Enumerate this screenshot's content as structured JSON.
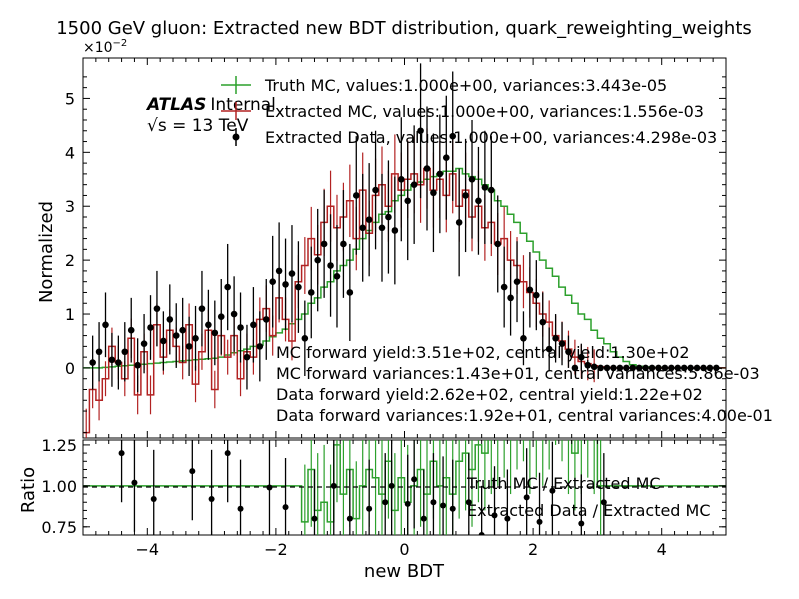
{
  "chart_data": {
    "type": "line",
    "title": "1500 GeV gluon: Extracted new BDT distribution, quark_reweighting_weights",
    "xlabel": "new BDT",
    "ylabel": "Normalized",
    "ratio_ylabel": "Ratio",
    "scale_label": "×10",
    "scale_exp": "−2",
    "xlim": [
      -5,
      5
    ],
    "ylim": [
      -1.3,
      5.75
    ],
    "ratio_ylim": [
      0.7,
      1.28
    ],
    "x_ticks": [
      -4,
      -2,
      0,
      2,
      4
    ],
    "x_tick_labels": [
      "−4",
      "−2",
      "0",
      "2",
      "4"
    ],
    "y_ticks": [
      0,
      1,
      2,
      3,
      4,
      5
    ],
    "y_tick_labels": [
      "0",
      "1",
      "2",
      "3",
      "4",
      "5"
    ],
    "ratio_ticks": [
      0.75,
      1.0,
      1.25
    ],
    "ratio_tick_labels": [
      "0.75",
      "1.00",
      "1.25"
    ],
    "atlas_label": "ATLAS",
    "atlas_sub": "Internal",
    "energy_label": "√s =  13 TeV",
    "legend": [
      "Truth MC, values:1.000e+00, variances:3.443e-05",
      "Extracted MC, values:1.000e+00, variances:1.556e-03",
      "Extracted Data, values:1.000e+00, variances:4.298e-03"
    ],
    "annotations": [
      "MC forward yield:3.51e+02, central yield:1.30e+02",
      "MC forward variances:1.43e+01, central variances:5.86e-03",
      "Data forward yield:2.62e+02, central yield:1.22e+02",
      "Data forward variances:1.92e+01, central variances:4.00e-01"
    ],
    "ratio_legend": [
      "Truth MC / Extracted MC",
      "Extracted Data / Extracted MC"
    ],
    "colors": {
      "truth": "#2ca02c",
      "mc": "#b22222",
      "data": "#000000"
    },
    "bins": {
      "start": -5,
      "width": 0.1,
      "count": 100
    },
    "series": [
      {
        "name": "Truth MC",
        "values": [
          0,
          0,
          0,
          0.01,
          0.02,
          0.03,
          0.04,
          0.05,
          0.06,
          0.07,
          0.08,
          0.09,
          0.1,
          0.11,
          0.12,
          0.13,
          0.14,
          0.15,
          0.16,
          0.17,
          0.18,
          0.2,
          0.24,
          0.28,
          0.32,
          0.35,
          0.4,
          0.42,
          0.5,
          0.58,
          0.65,
          0.72,
          0.82,
          0.9,
          1.0,
          1.2,
          1.3,
          1.5,
          1.6,
          1.8,
          1.9,
          2.0,
          2.2,
          2.4,
          2.55,
          2.7,
          2.85,
          2.9,
          3.1,
          3.2,
          3.3,
          3.4,
          3.45,
          3.5,
          3.55,
          3.6,
          3.65,
          3.65,
          3.7,
          3.6,
          3.55,
          3.5,
          3.4,
          3.3,
          3.1,
          3.0,
          2.85,
          2.7,
          2.5,
          2.35,
          2.15,
          2.0,
          1.85,
          1.7,
          1.5,
          1.35,
          1.2,
          1.0,
          0.9,
          0.7,
          0.55,
          0.45,
          0.3,
          0.2,
          0.12,
          0.06,
          0.03,
          0.02,
          0.01,
          0.01,
          0,
          0,
          0,
          0,
          0,
          0,
          0,
          0,
          0,
          0
        ]
      },
      {
        "name": "Extracted MC",
        "values": [
          -1.2,
          -0.4,
          -0.6,
          -0.2,
          0.4,
          0.1,
          -0.2,
          0.55,
          -0.5,
          0.3,
          -0.5,
          0.8,
          0.2,
          0.7,
          0.4,
          0.1,
          0.8,
          -0.3,
          0.3,
          0.7,
          -0.4,
          0.6,
          0.2,
          0.6,
          -0.2,
          0.3,
          0.2,
          0.9,
          1.1,
          0.6,
          1.3,
          0.9,
          0.5,
          1.6,
          1.9,
          2.4,
          2.1,
          2.7,
          3.0,
          2.6,
          2.8,
          3.1,
          2.4,
          3.3,
          2.5,
          3.2,
          3.4,
          3.0,
          3.6,
          3.3,
          3.5,
          3.6,
          3.4,
          3.7,
          3.3,
          3.5,
          3.2,
          3.6,
          3.0,
          3.3,
          2.8,
          3.0,
          2.6,
          2.7,
          2.3,
          2.4,
          2.0,
          1.9,
          1.6,
          1.4,
          1.2,
          1.0,
          0.85,
          0.6,
          0.5,
          0.35,
          0.2,
          0.12,
          0.08,
          0.04,
          0.02,
          0.01,
          0,
          0,
          0,
          0,
          0,
          0,
          0,
          0,
          0,
          0,
          0,
          0,
          0,
          0,
          0,
          0,
          0,
          0
        ]
      },
      {
        "name": "Extracted Data",
        "x": [
          -4.85,
          -4.75,
          -4.65,
          -4.55,
          -4.45,
          -4.35,
          -4.25,
          -4.15,
          -4.05,
          -3.95,
          -3.85,
          -3.75,
          -3.65,
          -3.55,
          -3.45,
          -3.35,
          -3.25,
          -3.15,
          -3.05,
          -2.95,
          -2.85,
          -2.75,
          -2.65,
          -2.55,
          -2.45,
          -2.35,
          -2.25,
          -2.15,
          -2.05,
          -1.95,
          -1.85,
          -1.75,
          -1.65,
          -1.55,
          -1.45,
          -1.35,
          -1.25,
          -1.15,
          -1.05,
          -0.95,
          -0.85,
          -0.75,
          -0.65,
          -0.55,
          -0.45,
          -0.35,
          -0.25,
          -0.15,
          -0.05,
          0.05,
          0.15,
          0.25,
          0.35,
          0.45,
          0.55,
          0.65,
          0.75,
          0.85,
          0.95,
          1.05,
          1.15,
          1.25,
          1.35,
          1.45,
          1.55,
          1.65,
          1.75,
          1.85,
          1.95,
          2.05,
          2.15,
          2.25,
          2.35,
          2.45,
          2.55,
          2.65,
          2.75,
          2.85,
          2.95,
          3.05,
          3.15,
          3.25,
          3.35,
          3.45,
          3.55,
          3.65,
          3.75,
          3.85,
          3.95,
          4.05,
          4.15,
          4.25,
          4.35,
          4.45,
          4.55,
          4.65,
          4.75,
          4.85
        ],
        "values": [
          0.1,
          0.3,
          0.8,
          0.15,
          0.1,
          0.3,
          0.7,
          0.05,
          0.45,
          0.75,
          1.1,
          0.5,
          0.9,
          0.6,
          0.7,
          0.4,
          0.55,
          1.1,
          0.8,
          0.65,
          0.95,
          1.5,
          1.0,
          0.75,
          0.2,
          0.8,
          0.4,
          0.9,
          1.6,
          1.8,
          1.55,
          1.75,
          1.5,
          0.55,
          1.4,
          2.0,
          2.3,
          1.9,
          1.7,
          2.3,
          1.4,
          3.2,
          2.6,
          2.75,
          3.3,
          2.6,
          2.8,
          2.55,
          3.5,
          3.1,
          3.4,
          4.4,
          3.7,
          3.25,
          3.6,
          3.9,
          4.3,
          2.7,
          3.2,
          3.5,
          3.1,
          3.35,
          3.3,
          2.3,
          1.5,
          1.3,
          1.6,
          0.55,
          1.45,
          1.35,
          0.85,
          0.35,
          0.55,
          0.45,
          0.3,
          0.0,
          0.2,
          0.05,
          0.02,
          0.0,
          0.0,
          0.0,
          0.0,
          0.0,
          0.0,
          0.0,
          0.0,
          0.0,
          0.0,
          0.0,
          0.0,
          0.0,
          0.0,
          0.0,
          0.0,
          0.0,
          0.0,
          0.0
        ],
        "errors": [
          0.5,
          0.55,
          0.6,
          0.5,
          0.5,
          0.55,
          0.6,
          0.5,
          0.55,
          0.6,
          0.7,
          0.55,
          0.65,
          0.6,
          0.6,
          0.55,
          0.6,
          0.7,
          0.65,
          0.6,
          0.7,
          0.8,
          0.7,
          0.65,
          0.6,
          0.7,
          0.65,
          0.75,
          0.85,
          0.9,
          0.85,
          0.9,
          0.85,
          0.7,
          0.85,
          0.95,
          1.0,
          0.95,
          0.95,
          1.0,
          0.9,
          1.1,
          1.0,
          1.05,
          1.1,
          1.0,
          1.05,
          1.0,
          1.15,
          1.1,
          1.1,
          1.25,
          1.15,
          1.1,
          1.1,
          1.15,
          1.2,
          1.0,
          1.05,
          1.1,
          1.0,
          1.05,
          1.0,
          0.9,
          0.75,
          0.7,
          0.75,
          0.5,
          0.7,
          0.65,
          0.55,
          0.4,
          0.45,
          0.4,
          0.3,
          0.05,
          0.25,
          0.1,
          0.05,
          0.02,
          0.02,
          0.02,
          0.02,
          0.02,
          0.02,
          0.02,
          0.02,
          0.02,
          0.02,
          0.02,
          0.02,
          0.02,
          0.02,
          0.02,
          0.02,
          0.02,
          0.02,
          0.02
        ]
      },
      {
        "name": "Truth MC / Extracted MC",
        "values": [
          1.0,
          1.0,
          1.0,
          1.0,
          1.0,
          1.0,
          1.0,
          1.0,
          1.0,
          1.0,
          1.0,
          1.0,
          1.0,
          1.0,
          1.0,
          1.0,
          1.0,
          1.0,
          1.0,
          1.0,
          1.0,
          1.0,
          1.0,
          1.0,
          1.0,
          1.0,
          1.0,
          1.0,
          1.0,
          1.0,
          1.0,
          1.0,
          1.0,
          1.0,
          0.78,
          1.1,
          0.85,
          0.9,
          0.78,
          1.25,
          0.95,
          1.1,
          0.8,
          1.0,
          1.1,
          1.05,
          0.95,
          1.15,
          0.85,
          1.05,
          0.9,
          1.0,
          1.1,
          0.95,
          1.15,
          1.0,
          1.05,
          0.95,
          1.15,
          1.2,
          1.1,
          1.25,
          1.2,
          1.3,
          1.35,
          1.4,
          1.3,
          1.45,
          1.5,
          1.3,
          1.4,
          1.35,
          1.45,
          1.6,
          1.5,
          1.3,
          1.2,
          1.3,
          1.4,
          1.3,
          1.0,
          1.0,
          1.0,
          1.0,
          1.0,
          1.0,
          1.0,
          1.0,
          1.0,
          1.0,
          1.0,
          1.0,
          1.0,
          1.0,
          1.0,
          1.0,
          1.0,
          1.0,
          1.0,
          1.0
        ]
      },
      {
        "name": "Extracted Data / Extracted MC",
        "x": [
          -4.4,
          -4.2,
          -3.9,
          -3.3,
          -3.0,
          -2.75,
          -2.55,
          -2.1,
          -1.85,
          -1.4,
          -1.1,
          -0.85,
          -0.55,
          -0.3,
          -0.2,
          0.05,
          0.15,
          0.3,
          0.45,
          0.6,
          0.75,
          1.0,
          1.2,
          1.4,
          1.6,
          1.9,
          2.1,
          2.3,
          2.75,
          3.1
        ],
        "values": [
          1.2,
          1.02,
          0.92,
          1.09,
          0.92,
          1.2,
          0.86,
          0.99,
          0.87,
          0.8,
          1.0,
          0.8,
          0.86,
          0.9,
          1.0,
          0.89,
          1.04,
          0.8,
          0.9,
          0.88,
          0.86,
          0.9,
          0.7,
          0.82,
          0.8,
          0.93,
          0.78,
          0.97,
          0.77,
          0.9
        ],
        "errors": [
          0.3,
          0.3,
          0.3,
          0.3,
          0.3,
          0.3,
          0.3,
          0.3,
          0.3,
          0.3,
          0.3,
          0.3,
          0.3,
          0.3,
          0.3,
          0.3,
          0.3,
          0.3,
          0.3,
          0.3,
          0.3,
          0.3,
          0.3,
          0.3,
          0.3,
          0.3,
          0.3,
          0.3,
          0.3,
          0.3
        ]
      }
    ]
  }
}
